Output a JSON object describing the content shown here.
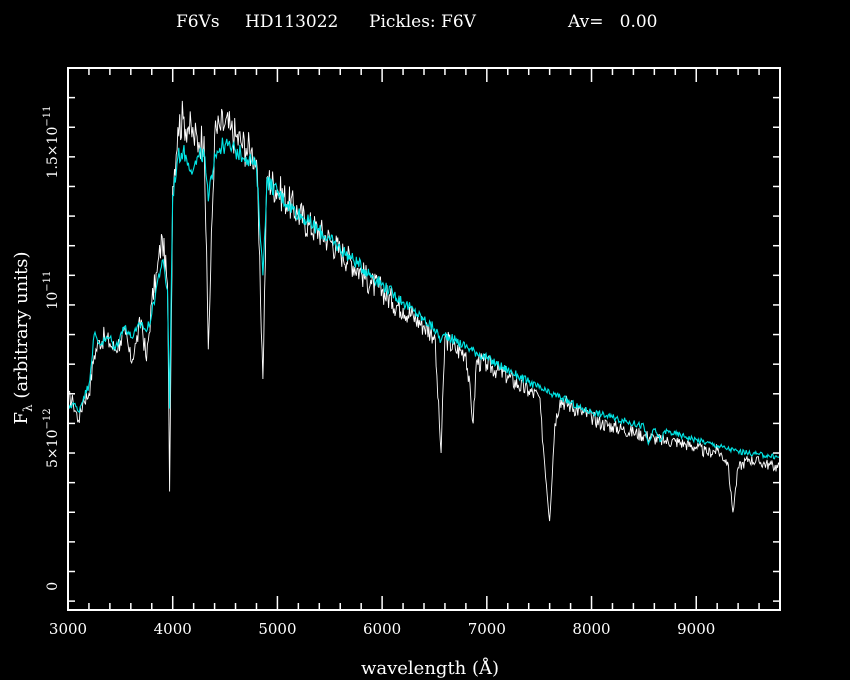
{
  "chart_data": {
    "type": "line",
    "title": {
      "spectral_type": "F6Vs",
      "star": "HD113022",
      "template": "Pickles: F6V",
      "extinction": "Av=   0.00"
    },
    "xlabel": "wavelength (Å)",
    "ylabel_main": "F",
    "ylabel_sub": "λ",
    "ylabel_rest": " (arbitrary units)",
    "xlim": [
      3000,
      9800
    ],
    "ylim": [
      -8e-13,
      1.75e-11
    ],
    "x_ticks": [
      {
        "value": 3000,
        "label": "3000"
      },
      {
        "value": 4000,
        "label": "4000"
      },
      {
        "value": 5000,
        "label": "5000"
      },
      {
        "value": 6000,
        "label": "6000"
      },
      {
        "value": 7000,
        "label": "7000"
      },
      {
        "value": 8000,
        "label": "8000"
      },
      {
        "value": 9000,
        "label": "9000"
      }
    ],
    "y_ticks": [
      {
        "value": 0,
        "label": "0"
      },
      {
        "value": 5e-12,
        "label": "5×10",
        "exp": "−12"
      },
      {
        "value": 1e-11,
        "label": "10",
        "exp": "−11"
      },
      {
        "value": 1.5e-11,
        "label": "1.5×10",
        "exp": "−11"
      }
    ],
    "colors": {
      "background": "#000000",
      "axes": "#ffffff",
      "observed": "#ffffff",
      "template": "#00e5e5"
    },
    "series": [
      {
        "color": "#ffffff",
        "x": [
          3000,
          3050,
          3100,
          3150,
          3200,
          3250,
          3300,
          3350,
          3400,
          3450,
          3500,
          3550,
          3600,
          3650,
          3700,
          3750,
          3800,
          3850,
          3900,
          3950,
          3970,
          4000,
          4050,
          4100,
          4150,
          4200,
          4250,
          4300,
          4340,
          4400,
          4450,
          4500,
          4550,
          4600,
          4650,
          4700,
          4750,
          4800,
          4861,
          4900,
          5000,
          5100,
          5200,
          5300,
          5400,
          5500,
          5600,
          5700,
          5800,
          5900,
          6000,
          6100,
          6200,
          6300,
          6400,
          6500,
          6563,
          6600,
          6700,
          6800,
          6870,
          6900,
          7000,
          7100,
          7200,
          7300,
          7400,
          7500,
          7600,
          7650,
          7700,
          7800,
          7900,
          8000,
          8100,
          8200,
          8300,
          8400,
          8500,
          8600,
          8700,
          8800,
          8900,
          9000,
          9100,
          9200,
          9300,
          9350,
          9400,
          9500,
          9600,
          9700,
          9800
        ],
        "y": [
          6.4e-12,
          6.2e-12,
          5.6e-12,
          6.3e-12,
          6.5e-12,
          7.8e-12,
          8.3e-12,
          8.4e-12,
          8.2e-12,
          8e-12,
          8.3e-12,
          8.5e-12,
          7.6e-12,
          8.2e-12,
          9e-12,
          7.6e-12,
          9.6e-12,
          1.06e-11,
          1.18e-11,
          1.02e-11,
          3.2e-12,
          1.35e-11,
          1.55e-11,
          1.58e-11,
          1.55e-11,
          1.52e-11,
          1.5e-11,
          1.52e-11,
          8e-12,
          1.52e-11,
          1.55e-11,
          1.56e-11,
          1.54e-11,
          1.52e-11,
          1.5e-11,
          1.48e-11,
          1.47e-11,
          1.44e-11,
          7e-12,
          1.38e-11,
          1.34e-11,
          1.3e-11,
          1.26e-11,
          1.22e-11,
          1.2e-11,
          1.17e-11,
          1.13e-11,
          1.1e-11,
          1.06e-11,
          1.02e-11,
          1e-11,
          9.6e-12,
          9.4e-12,
          9.1e-12,
          8.8e-12,
          8.5e-12,
          4.5e-12,
          8.4e-12,
          8e-12,
          7.9e-12,
          5.5e-12,
          7.6e-12,
          7.5e-12,
          7.3e-12,
          7.1e-12,
          6.8e-12,
          6.6e-12,
          6.4e-12,
          2.2e-12,
          5.5e-12,
          6.3e-12,
          6.1e-12,
          5.9e-12,
          5.7e-12,
          5.5e-12,
          5.4e-12,
          5.3e-12,
          5.2e-12,
          5.1e-12,
          5e-12,
          4.9e-12,
          4.9e-12,
          4.8e-12,
          4.7e-12,
          4.5e-12,
          4.6e-12,
          4.2e-12,
          2.5e-12,
          4e-12,
          4.3e-12,
          4.2e-12,
          4.1e-12,
          4e-12
        ]
      },
      {
        "color": "#00e5e5",
        "x": [
          3000,
          3050,
          3100,
          3150,
          3200,
          3250,
          3300,
          3350,
          3400,
          3450,
          3500,
          3550,
          3600,
          3650,
          3700,
          3750,
          3800,
          3850,
          3900,
          3950,
          3970,
          4000,
          4050,
          4100,
          4150,
          4200,
          4250,
          4300,
          4340,
          4400,
          4450,
          4500,
          4550,
          4600,
          4650,
          4700,
          4750,
          4800,
          4861,
          4900,
          5000,
          5100,
          5200,
          5300,
          5400,
          5500,
          5600,
          5700,
          5800,
          5900,
          6000,
          6100,
          6200,
          6300,
          6400,
          6500,
          6563,
          6600,
          6700,
          6800,
          6900,
          7000,
          7100,
          7200,
          7300,
          7400,
          7500,
          7600,
          7700,
          7800,
          7900,
          8000,
          8100,
          8200,
          8300,
          8400,
          8500,
          8542,
          8600,
          8662,
          8700,
          8800,
          8900,
          9000,
          9100,
          9200,
          9300,
          9400,
          9500,
          9600,
          9700,
          9800
        ],
        "y": [
          6e-12,
          6.2e-12,
          5.9e-12,
          6.4e-12,
          6.8e-12,
          8.5e-12,
          8.2e-12,
          8.3e-12,
          8.4e-12,
          8e-12,
          8.5e-12,
          8.8e-12,
          8.4e-12,
          8.6e-12,
          8.9e-12,
          8.6e-12,
          9.2e-12,
          1.02e-11,
          1.1e-11,
          1e-11,
          6e-12,
          1.32e-11,
          1.45e-11,
          1.47e-11,
          1.43e-11,
          1.41e-11,
          1.45e-11,
          1.46e-11,
          1.3e-11,
          1.46e-11,
          1.48e-11,
          1.49e-11,
          1.48e-11,
          1.47e-11,
          1.46e-11,
          1.45e-11,
          1.44e-11,
          1.41e-11,
          1.05e-11,
          1.37e-11,
          1.33e-11,
          1.29e-11,
          1.26e-11,
          1.23e-11,
          1.2e-11,
          1.17e-11,
          1.14e-11,
          1.11e-11,
          1.08e-11,
          1.05e-11,
          1.02e-11,
          9.9e-12,
          9.6e-12,
          9.3e-12,
          9e-12,
          8.7e-12,
          8.3e-12,
          8.5e-12,
          8.3e-12,
          8.1e-12,
          7.9e-12,
          7.7e-12,
          7.5e-12,
          7.3e-12,
          7.1e-12,
          6.9e-12,
          6.7e-12,
          6.5e-12,
          6.4e-12,
          6.2e-12,
          6e-12,
          5.9e-12,
          5.8e-12,
          5.7e-12,
          5.6e-12,
          5.5e-12,
          5.4e-12,
          4.8e-12,
          5.3e-12,
          4.9e-12,
          5.25e-12,
          5.15e-12,
          5.05e-12,
          4.95e-12,
          4.85e-12,
          4.75e-12,
          4.65e-12,
          4.55e-12,
          4.5e-12,
          4.45e-12,
          4.4e-12,
          4.35e-12
        ]
      }
    ]
  }
}
